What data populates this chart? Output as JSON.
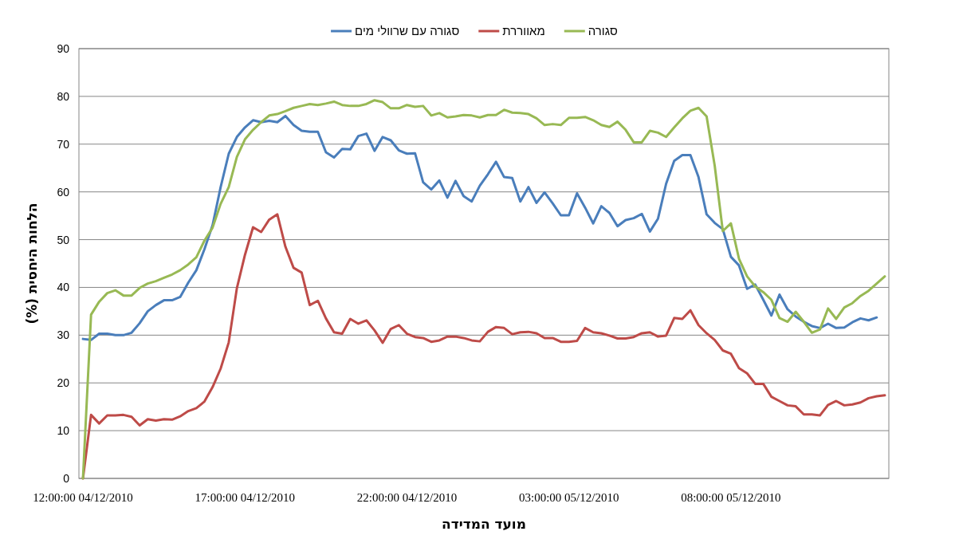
{
  "chart_data": {
    "type": "line",
    "ylabel": "הלחות היחסית (%)",
    "xlabel": "מועד המדידה",
    "categories": [
      "12:00:00 04/12/2010",
      null,
      null,
      null,
      null,
      null,
      null,
      null,
      null,
      null,
      null,
      null,
      null,
      null,
      null,
      null,
      null,
      null,
      null,
      null,
      "17:00:00 04/12/2010",
      null,
      null,
      null,
      null,
      null,
      null,
      null,
      null,
      null,
      null,
      null,
      null,
      null,
      null,
      null,
      null,
      null,
      null,
      null,
      "22:00:00 04/12/2010",
      null,
      null,
      null,
      null,
      null,
      null,
      null,
      null,
      null,
      null,
      null,
      null,
      null,
      null,
      null,
      null,
      null,
      null,
      null,
      "03:00:00 05/12/2010",
      null,
      null,
      null,
      null,
      null,
      null,
      null,
      null,
      null,
      null,
      null,
      null,
      null,
      null,
      null,
      null,
      null,
      null,
      null,
      "08:00:00 05/12/2010",
      null,
      null,
      null,
      null,
      null,
      null,
      null,
      null,
      null,
      null,
      null,
      null,
      null,
      null,
      null,
      null,
      null,
      null,
      null
    ],
    "ylim": [
      0,
      90
    ],
    "yticks": [
      0,
      10,
      20,
      30,
      40,
      50,
      60,
      70,
      80,
      90
    ],
    "grid": "y",
    "legend": "top",
    "marker": "none",
    "series": [
      {
        "name": "סגורה עם שרוולי מים",
        "color": "#4a7ebb",
        "values": [
          29.2,
          29.0,
          30.3,
          30.3,
          30.0,
          30.0,
          30.5,
          32.5,
          35,
          36.3,
          37.3,
          37.3,
          38.0,
          41,
          43.6,
          48,
          53,
          61,
          68,
          71.5,
          73.5,
          75,
          74.6,
          74.9,
          74.6,
          75.9,
          74,
          72.8,
          72.6,
          72.6,
          68.3,
          67.2,
          69,
          68.9,
          71.7,
          72.2,
          68.6,
          71.5,
          70.8,
          68.7,
          68,
          68.1,
          62,
          60.5,
          62.4,
          58.8,
          62.3,
          59.1,
          58,
          61.3,
          63.7,
          66.3,
          63.1,
          62.9,
          58,
          61,
          57.7,
          59.9,
          57.6,
          55.1,
          55.1,
          59.7,
          56.7,
          53.4,
          57,
          55.6,
          52.8,
          54.1,
          54.5,
          55.4,
          51.7,
          54.4,
          61.7,
          66.5,
          67.7,
          67.7,
          63.1,
          55.3,
          53.5,
          52.2,
          46.4,
          44.6,
          39.7,
          40.6,
          37.4,
          34.1,
          38.5,
          35.4,
          33.9,
          32.8,
          31.9,
          31.5,
          32.4,
          31.5,
          31.6,
          32.7,
          33.5,
          33.1,
          33.7,
          null
        ]
      },
      {
        "name": "מאווררת",
        "color": "#be4b48",
        "values": [
          0,
          13.3,
          11.5,
          13.2,
          13.2,
          13.3,
          12.9,
          11.1,
          12.4,
          12.1,
          12.4,
          12.3,
          13,
          14.1,
          14.7,
          16.1,
          19.1,
          23,
          28.5,
          39.8,
          46.8,
          52.6,
          51.6,
          54.2,
          55.3,
          48.5,
          44.1,
          43.1,
          36.3,
          37.2,
          33.5,
          30.6,
          30.3,
          33.4,
          32.4,
          33.1,
          31,
          28.4,
          31.3,
          32.1,
          30.3,
          29.6,
          29.4,
          28.6,
          28.9,
          29.7,
          29.7,
          29.4,
          28.9,
          28.7,
          30.7,
          31.7,
          31.5,
          30.2,
          30.6,
          30.7,
          30.4,
          29.4,
          29.4,
          28.6,
          28.6,
          28.8,
          31.5,
          30.6,
          30.4,
          29.9,
          29.3,
          29.3,
          29.6,
          30.4,
          30.6,
          29.7,
          29.9,
          33.6,
          33.4,
          35.2,
          32.1,
          30.4,
          29,
          26.8,
          26.1,
          23.1,
          22,
          19.8,
          19.8,
          17.1,
          16.2,
          15.3,
          15.1,
          13.4,
          13.4,
          13.2,
          15.4,
          16.2,
          15.3,
          15.5,
          15.9,
          16.8,
          17.2,
          17.4
        ]
      },
      {
        "name": "סגורה",
        "color": "#98b954",
        "values": [
          0,
          34.3,
          37,
          38.8,
          39.4,
          38.3,
          38.3,
          39.9,
          40.8,
          41.3,
          42,
          42.7,
          43.6,
          44.8,
          46.3,
          49.8,
          52.5,
          57.5,
          61,
          67.3,
          71,
          73,
          74.6,
          76,
          76.3,
          76.9,
          77.6,
          78,
          78.4,
          78.2,
          78.5,
          78.9,
          78.2,
          78,
          78,
          78.4,
          79.2,
          78.8,
          77.5,
          77.5,
          78.2,
          77.8,
          78,
          76,
          76.5,
          75.6,
          75.8,
          76.1,
          76,
          75.6,
          76.1,
          76.1,
          77.2,
          76.6,
          76.5,
          76.3,
          75.4,
          74,
          74.2,
          74,
          75.5,
          75.5,
          75.7,
          75,
          74,
          73.6,
          74.7,
          73,
          70.4,
          70.4,
          72.8,
          72.4,
          71.5,
          73.5,
          75.4,
          77,
          77.6,
          75.8,
          65.5,
          51.8,
          53.4,
          46,
          42.3,
          40.2,
          39,
          37.4,
          33.6,
          32.8,
          34.9,
          32.8,
          30.5,
          31.2,
          35.6,
          33.4,
          35.8,
          36.7,
          38.2,
          39.3,
          40.8,
          42.3
        ]
      }
    ]
  }
}
